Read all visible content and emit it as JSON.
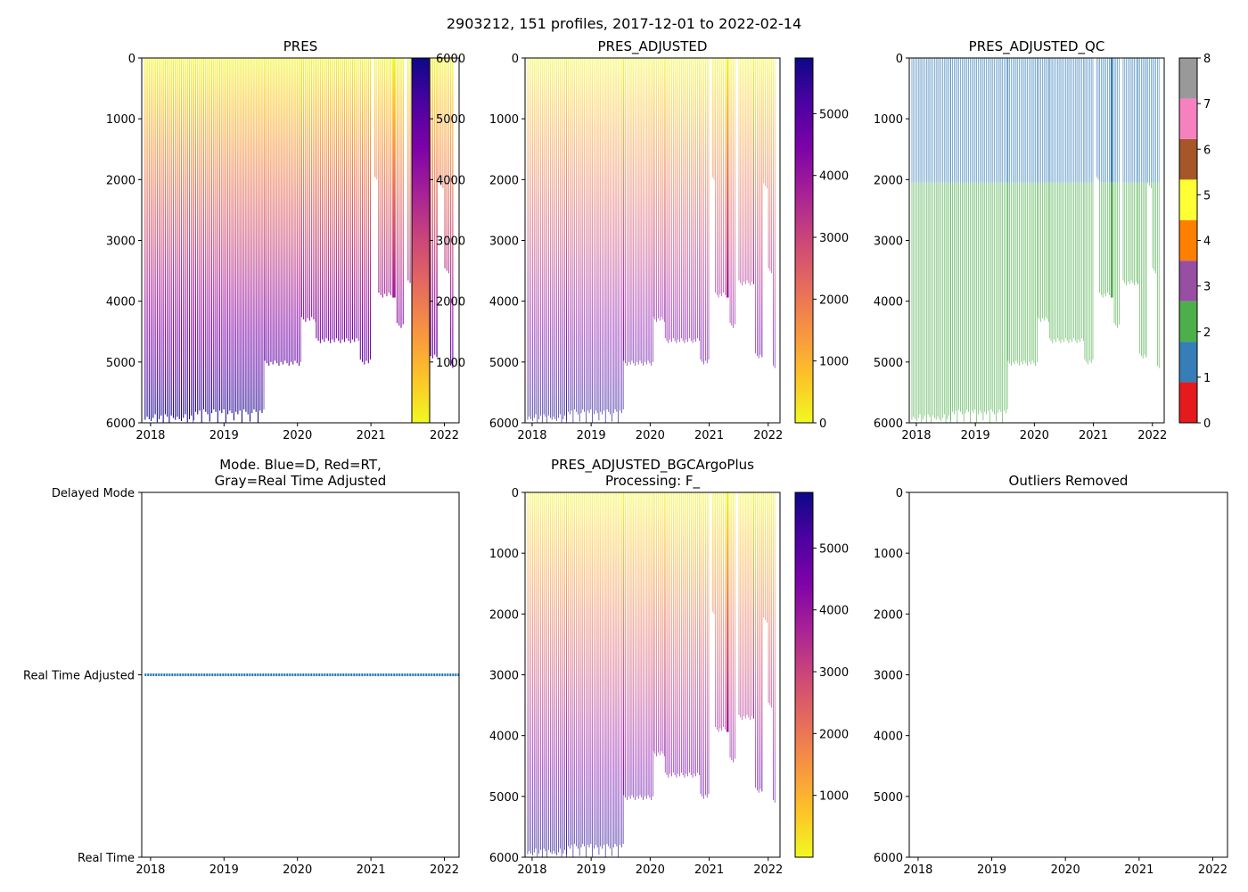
{
  "figure": {
    "suptitle": "2903212, 151 profiles, 2017-12-01 to 2022-02-14"
  },
  "colors": {
    "qc": [
      "#e41a1c",
      "#377eb8",
      "#4daf4a",
      "#984ea3",
      "#ff7f00",
      "#ffff33",
      "#a65628",
      "#f781bf",
      "#999999"
    ],
    "plasma_stops": [
      "#f0f921",
      "#fdc328",
      "#f89441",
      "#e56b5d",
      "#cb4778",
      "#a82296",
      "#7e03a8",
      "#4c02a1",
      "#0d0887"
    ],
    "mode_line": "#1f77b4"
  },
  "chart_data": [
    {
      "id": "pres",
      "type": "heatmap",
      "title": "PRES",
      "variable": "PRES",
      "xlabel": "",
      "ylabel": "",
      "xlim": [
        2017.88,
        2022.2
      ],
      "ylim": [
        6000,
        0
      ],
      "x_ticks": [
        "2018",
        "2019",
        "2020",
        "2021",
        "2022"
      ],
      "y_ticks": [
        "0",
        "1000",
        "2000",
        "3000",
        "4000",
        "5000",
        "6000"
      ],
      "colorbar": {
        "cmap": "plasma_r",
        "range": [
          0,
          6000
        ],
        "ticks": [
          "1000",
          "2000",
          "3000",
          "4000",
          "5000",
          "6000"
        ]
      }
    },
    {
      "id": "pres_adjusted",
      "type": "heatmap",
      "title": "PRES_ADJUSTED",
      "variable": "PRES_ADJUSTED",
      "xlim": [
        2017.88,
        2022.2
      ],
      "ylim": [
        6000,
        0
      ],
      "x_ticks": [
        "2018",
        "2019",
        "2020",
        "2021",
        "2022"
      ],
      "y_ticks": [
        "0",
        "1000",
        "2000",
        "3000",
        "4000",
        "5000",
        "6000"
      ],
      "colorbar": {
        "cmap": "plasma_r",
        "range": [
          0,
          5900
        ],
        "ticks": [
          "0",
          "1000",
          "2000",
          "3000",
          "4000",
          "5000"
        ]
      }
    },
    {
      "id": "pres_adjusted_qc",
      "type": "heatmap",
      "title": "PRES_ADJUSTED_QC",
      "variable": "PRES_ADJUSTED_QC",
      "xlim": [
        2017.88,
        2022.2
      ],
      "ylim": [
        6000,
        0
      ],
      "x_ticks": [
        "2018",
        "2019",
        "2020",
        "2021",
        "2022"
      ],
      "y_ticks": [
        "0",
        "1000",
        "2000",
        "3000",
        "4000",
        "5000",
        "6000"
      ],
      "qc_regions": [
        {
          "from": 0,
          "to": 2050,
          "qc": 1
        },
        {
          "from": 2050,
          "to": "bottom",
          "qc": 2
        }
      ],
      "colorbar": {
        "cmap": "qc",
        "range": [
          0,
          8
        ],
        "ticks": [
          "0",
          "1",
          "2",
          "3",
          "4",
          "5",
          "6",
          "7",
          "8"
        ]
      }
    },
    {
      "id": "mode",
      "type": "line",
      "title_lines": [
        "Mode. Blue=D, Red=RT,",
        "Gray=Real Time Adjusted"
      ],
      "xlim": [
        2017.88,
        2022.2
      ],
      "x_ticks": [
        "2018",
        "2019",
        "2020",
        "2021",
        "2022"
      ],
      "y_ticks": [
        "Delayed Mode",
        "Real Time Adjusted",
        "Real Time"
      ],
      "y_values": [
        2,
        1,
        0
      ],
      "series": [
        {
          "name": "mode",
          "value": 1,
          "x_range": [
            2017.92,
            2022.2
          ]
        }
      ]
    },
    {
      "id": "pres_bgc",
      "type": "heatmap",
      "title_lines": [
        "PRES_ADJUSTED_BGCArgoPlus",
        "Processing: F_"
      ],
      "variable": "PRES_ADJUSTED_BGCArgoPlus",
      "xlim": [
        2017.88,
        2022.2
      ],
      "ylim": [
        6000,
        0
      ],
      "x_ticks": [
        "2018",
        "2019",
        "2020",
        "2021",
        "2022"
      ],
      "y_ticks": [
        "0",
        "1000",
        "2000",
        "3000",
        "4000",
        "5000",
        "6000"
      ],
      "colorbar": {
        "cmap": "plasma_r",
        "range": [
          0,
          5900
        ],
        "ticks": [
          "1000",
          "2000",
          "3000",
          "4000",
          "5000"
        ]
      }
    },
    {
      "id": "outliers",
      "type": "scatter",
      "title": "Outliers Removed",
      "xlim": [
        2017.88,
        2022.2
      ],
      "ylim": [
        6000,
        0
      ],
      "x_ticks": [
        "2018",
        "2019",
        "2020",
        "2021",
        "2022"
      ],
      "y_ticks": [
        "0",
        "1000",
        "2000",
        "3000",
        "4000",
        "5000",
        "6000"
      ],
      "points": []
    }
  ],
  "profile_segments": [
    {
      "start": 2017.92,
      "end": 2018.58,
      "step": 0.0274,
      "max_depth": 5900,
      "deep_every": 3,
      "deep_depth": 5990
    },
    {
      "start": 2018.58,
      "end": 2019.55,
      "step": 0.0274,
      "max_depth": 5820,
      "deep_every": 4,
      "deep_depth": 6000
    },
    {
      "start": 2019.55,
      "end": 2020.05,
      "step": 0.0274,
      "max_depth": 5020
    },
    {
      "start": 2020.05,
      "end": 2020.25,
      "step": 0.0274,
      "max_depth": 4300
    },
    {
      "start": 2020.25,
      "end": 2020.85,
      "step": 0.0274,
      "max_depth": 4650
    },
    {
      "start": 2020.85,
      "end": 2021.0,
      "step": 0.0274,
      "max_depth": 5000
    },
    {
      "start": 2021.05,
      "end": 2021.1,
      "step": 0.0274,
      "max_depth": 2000
    },
    {
      "start": 2021.1,
      "end": 2021.3,
      "step": 0.0274,
      "max_depth": 3900
    },
    {
      "start": 2021.35,
      "end": 2021.45,
      "step": 0.0274,
      "max_depth": 4400
    },
    {
      "start": 2021.5,
      "end": 2021.75,
      "step": 0.0274,
      "max_depth": 3700
    },
    {
      "start": 2021.78,
      "end": 2021.9,
      "step": 0.0274,
      "max_depth": 4900
    },
    {
      "start": 2021.92,
      "end": 2022.0,
      "step": 0.0274,
      "max_depth": 2100
    },
    {
      "start": 2022.0,
      "end": 2022.08,
      "step": 0.0274,
      "max_depth": 3500
    },
    {
      "start": 2022.08,
      "end": 2022.13,
      "step": 0.0274,
      "max_depth": 5100
    }
  ]
}
